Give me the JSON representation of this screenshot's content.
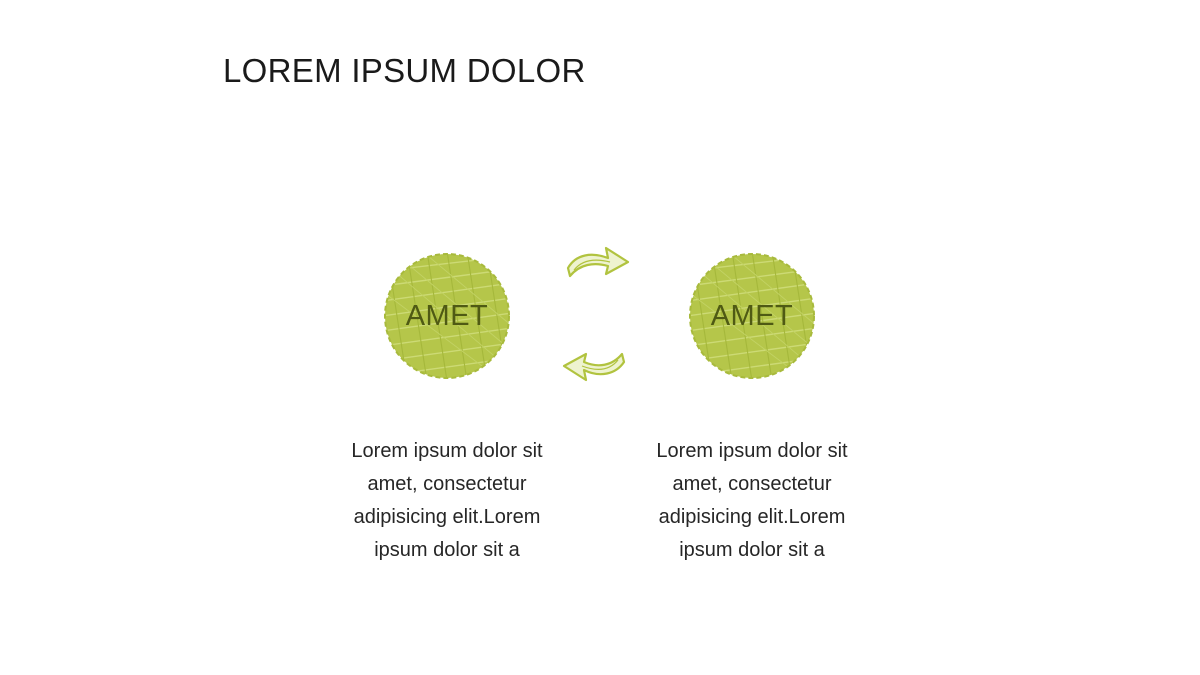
{
  "slide": {
    "title": "LOREM IPSUM DOLOR",
    "accent_color": "#b1c33f",
    "left": {
      "label": "AMET",
      "text_lines": [
        "Lorem ipsum dolor sit",
        "amet, consectetur",
        "adipisicing elit.Lorem",
        "ipsum dolor sit a"
      ]
    },
    "right": {
      "label": "AMET",
      "text_lines": [
        "Lorem ipsum dolor sit",
        "amet, consectetur",
        "adipisicing elit.Lorem",
        "ipsum dolor sit a"
      ]
    },
    "icons": {
      "top_arrow": "arrow-right-icon",
      "bottom_arrow": "arrow-left-icon"
    }
  }
}
